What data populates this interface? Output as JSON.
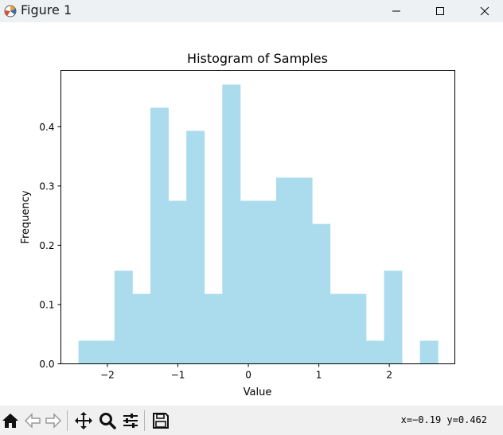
{
  "window": {
    "title": "Figure 1"
  },
  "toolbar": {
    "buttons": [
      "home-icon",
      "back-icon",
      "forward-icon",
      "pan-icon",
      "zoom-icon",
      "configure-icon",
      "save-icon"
    ],
    "coords": "x=−0.19 y=0.462"
  },
  "chart_data": {
    "type": "bar",
    "title": "Histogram of Samples",
    "xlabel": "Value",
    "ylabel": "Frequency",
    "xlim": [
      -2.66,
      2.93
    ],
    "ylim": [
      0,
      0.495
    ],
    "color": "#aadcee",
    "bin_edges": [
      -2.41,
      -2.155,
      -1.9,
      -1.645,
      -1.39,
      -1.135,
      -0.88,
      -0.625,
      -0.37,
      -0.115,
      0.14,
      0.395,
      0.65,
      0.905,
      1.16,
      1.415,
      1.67,
      1.925,
      2.18,
      2.435,
      2.69
    ],
    "values": [
      0.039,
      0.039,
      0.157,
      0.118,
      0.432,
      0.275,
      0.393,
      0.118,
      0.471,
      0.275,
      0.275,
      0.314,
      0.314,
      0.236,
      0.118,
      0.118,
      0.039,
      0.157,
      0.0,
      0.039
    ],
    "xticks": [
      -2,
      -1,
      0,
      1,
      2
    ],
    "xtick_labels": [
      "−2",
      "−1",
      "0",
      "1",
      "2"
    ],
    "yticks": [
      0.0,
      0.1,
      0.2,
      0.3,
      0.4
    ],
    "ytick_labels": [
      "0.0",
      "0.1",
      "0.2",
      "0.3",
      "0.4"
    ],
    "grid": false,
    "legend": "none"
  }
}
